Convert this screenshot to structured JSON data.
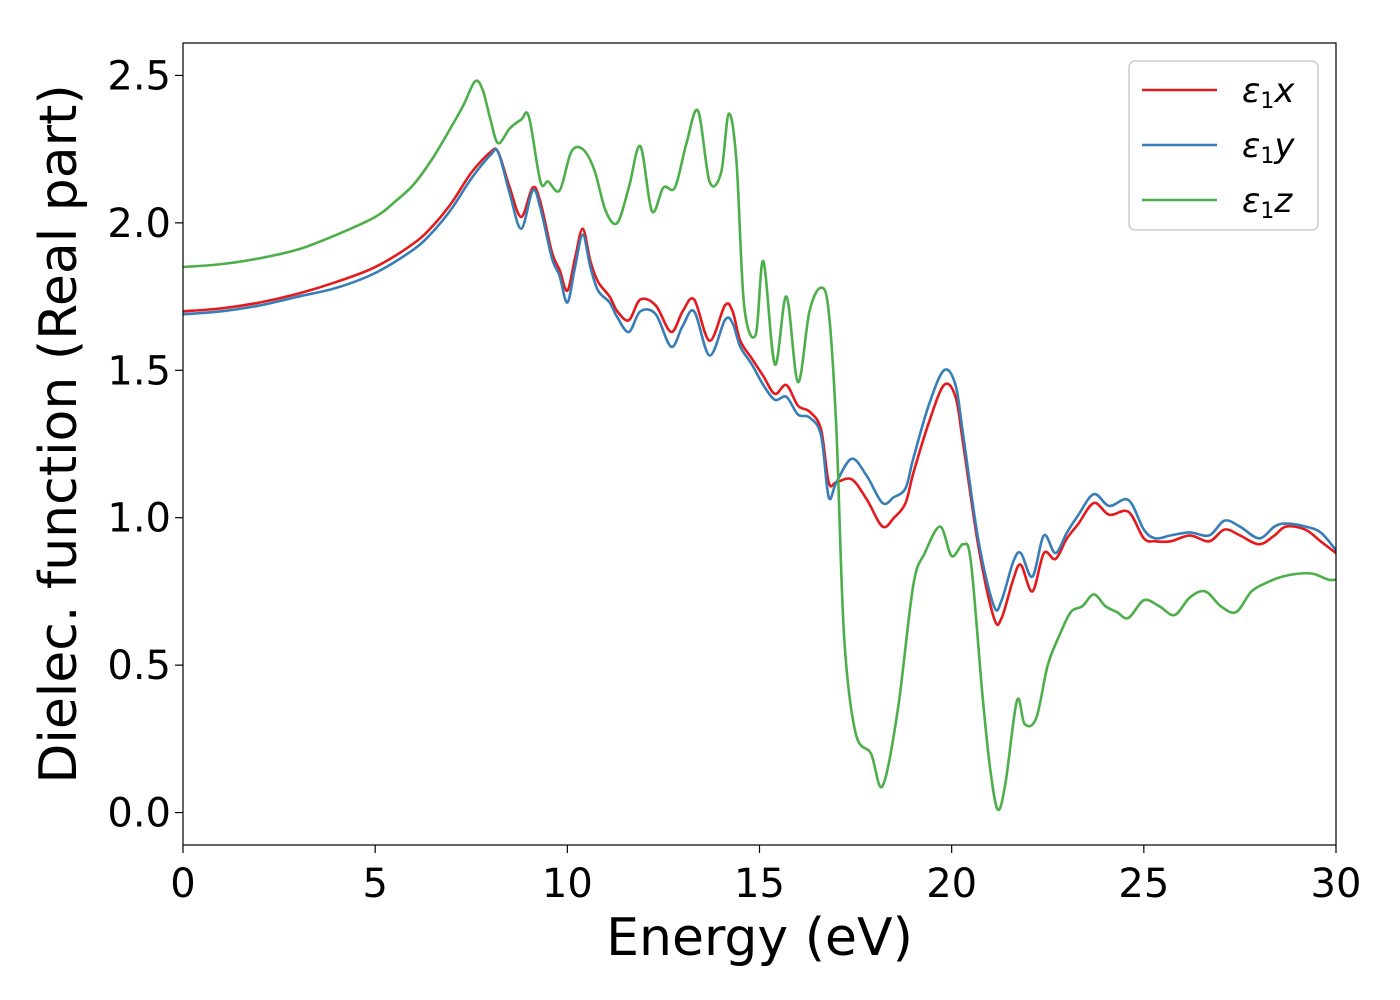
{
  "chart_data": {
    "type": "line",
    "xlabel": "Energy (eV)",
    "ylabel": "Dielec. function (Real part)",
    "xlim": [
      0,
      30
    ],
    "ylim": [
      -0.11,
      2.61
    ],
    "xticks": [
      0,
      5,
      10,
      15,
      20,
      25,
      30
    ],
    "xtick_labels": [
      "0",
      "5",
      "10",
      "15",
      "20",
      "25",
      "30"
    ],
    "yticks": [
      0.0,
      0.5,
      1.0,
      1.5,
      2.0,
      2.5
    ],
    "ytick_labels": [
      "0.0",
      "0.5",
      "1.0",
      "1.5",
      "2.0",
      "2.5"
    ],
    "grid": false,
    "legend_position": "top-right",
    "series": [
      {
        "name": "ε1x",
        "legend_main": "ε",
        "legend_sub": "1",
        "legend_tail": "x",
        "color": "#e41a1c",
        "x": [
          0,
          1,
          2,
          3,
          4,
          5,
          6,
          6.5,
          7,
          7.5,
          8.0,
          8.2,
          8.5,
          8.8,
          9.1,
          9.3,
          9.6,
          9.8,
          10.0,
          10.2,
          10.4,
          10.6,
          10.8,
          11.1,
          11.3,
          11.6,
          11.9,
          12.3,
          12.7,
          13.0,
          13.3,
          13.7,
          14.1,
          14.3,
          14.5,
          14.8,
          15.1,
          15.4,
          15.7,
          16.0,
          16.3,
          16.6,
          16.8,
          17.0,
          17.4,
          17.8,
          18.2,
          18.5,
          18.8,
          19.0,
          19.4,
          19.8,
          20.1,
          20.3,
          20.7,
          21.1,
          21.3,
          21.6,
          21.8,
          22.1,
          22.4,
          22.7,
          23.0,
          23.3,
          23.7,
          24.1,
          24.6,
          25.0,
          25.3,
          25.7,
          26.2,
          26.7,
          27.1,
          27.5,
          28.0,
          28.4,
          28.7,
          29.2,
          29.6,
          30.0
        ],
        "values": [
          1.7,
          1.71,
          1.73,
          1.76,
          1.8,
          1.85,
          1.93,
          1.99,
          2.07,
          2.17,
          2.24,
          2.24,
          2.12,
          2.02,
          2.12,
          2.07,
          1.9,
          1.84,
          1.77,
          1.88,
          1.98,
          1.87,
          1.8,
          1.75,
          1.7,
          1.67,
          1.74,
          1.72,
          1.63,
          1.7,
          1.74,
          1.6,
          1.72,
          1.7,
          1.6,
          1.54,
          1.48,
          1.42,
          1.45,
          1.38,
          1.36,
          1.3,
          1.12,
          1.12,
          1.13,
          1.06,
          0.97,
          1.0,
          1.05,
          1.15,
          1.32,
          1.45,
          1.41,
          1.25,
          0.9,
          0.66,
          0.66,
          0.79,
          0.84,
          0.75,
          0.88,
          0.86,
          0.93,
          0.98,
          1.05,
          1.01,
          1.02,
          0.93,
          0.92,
          0.92,
          0.94,
          0.92,
          0.96,
          0.94,
          0.91,
          0.94,
          0.97,
          0.96,
          0.92,
          0.88
        ]
      },
      {
        "name": "ε1y",
        "legend_main": "ε",
        "legend_sub": "1",
        "legend_tail": "y",
        "color": "#377eb8",
        "x": [
          0,
          1,
          2,
          3,
          4,
          5,
          6,
          6.5,
          7,
          7.5,
          8.0,
          8.2,
          8.5,
          8.8,
          9.1,
          9.3,
          9.6,
          9.8,
          10.0,
          10.2,
          10.4,
          10.6,
          10.8,
          11.1,
          11.3,
          11.6,
          11.9,
          12.3,
          12.7,
          13.0,
          13.3,
          13.7,
          14.1,
          14.3,
          14.5,
          14.8,
          15.1,
          15.4,
          15.7,
          16.0,
          16.3,
          16.6,
          16.8,
          17.0,
          17.4,
          17.8,
          18.2,
          18.5,
          18.8,
          19.0,
          19.4,
          19.8,
          20.1,
          20.3,
          20.7,
          21.1,
          21.3,
          21.6,
          21.8,
          22.1,
          22.4,
          22.7,
          23.0,
          23.3,
          23.7,
          24.1,
          24.6,
          25.0,
          25.3,
          25.7,
          26.2,
          26.7,
          27.1,
          27.5,
          28.0,
          28.4,
          28.7,
          29.2,
          29.6,
          30.0
        ],
        "values": [
          1.69,
          1.7,
          1.72,
          1.75,
          1.78,
          1.83,
          1.91,
          1.97,
          2.05,
          2.15,
          2.23,
          2.24,
          2.1,
          1.98,
          2.11,
          2.05,
          1.88,
          1.82,
          1.73,
          1.85,
          1.96,
          1.85,
          1.77,
          1.73,
          1.68,
          1.63,
          1.7,
          1.69,
          1.58,
          1.65,
          1.7,
          1.55,
          1.67,
          1.66,
          1.58,
          1.52,
          1.45,
          1.4,
          1.41,
          1.35,
          1.34,
          1.28,
          1.07,
          1.12,
          1.2,
          1.14,
          1.05,
          1.07,
          1.1,
          1.2,
          1.38,
          1.5,
          1.45,
          1.28,
          0.92,
          0.7,
          0.72,
          0.85,
          0.88,
          0.8,
          0.94,
          0.88,
          0.95,
          1.01,
          1.08,
          1.04,
          1.06,
          0.96,
          0.93,
          0.94,
          0.95,
          0.94,
          0.99,
          0.97,
          0.93,
          0.97,
          0.98,
          0.97,
          0.95,
          0.89
        ]
      },
      {
        "name": "ε1z",
        "legend_main": "ε",
        "legend_sub": "1",
        "legend_tail": "z",
        "color": "#4daf4a",
        "x": [
          0,
          1,
          2,
          3,
          4,
          5,
          5.5,
          6,
          6.5,
          7.0,
          7.3,
          7.6,
          7.8,
          8.0,
          8.2,
          8.5,
          8.8,
          9.0,
          9.3,
          9.5,
          9.8,
          10.1,
          10.4,
          10.7,
          11.0,
          11.3,
          11.6,
          11.9,
          12.2,
          12.5,
          12.8,
          13.1,
          13.4,
          13.7,
          14.0,
          14.2,
          14.4,
          14.6,
          14.9,
          15.1,
          15.4,
          15.7,
          16.0,
          16.3,
          16.6,
          16.8,
          17.0,
          17.2,
          17.5,
          17.9,
          18.2,
          18.6,
          19.0,
          19.3,
          19.7,
          20.0,
          20.3,
          20.5,
          20.8,
          21.0,
          21.2,
          21.4,
          21.7,
          21.9,
          22.2,
          22.5,
          22.8,
          23.1,
          23.4,
          23.7,
          24.0,
          24.3,
          24.6,
          25.0,
          25.4,
          25.8,
          26.2,
          26.6,
          27.0,
          27.4,
          27.8,
          28.2,
          28.6,
          29.0,
          29.4,
          29.8,
          30.0
        ],
        "values": [
          1.85,
          1.86,
          1.88,
          1.91,
          1.96,
          2.02,
          2.07,
          2.13,
          2.22,
          2.33,
          2.4,
          2.48,
          2.45,
          2.35,
          2.27,
          2.32,
          2.35,
          2.36,
          2.14,
          2.14,
          2.11,
          2.24,
          2.25,
          2.18,
          2.04,
          2.0,
          2.12,
          2.26,
          2.04,
          2.12,
          2.12,
          2.27,
          2.38,
          2.14,
          2.17,
          2.37,
          2.21,
          1.72,
          1.62,
          1.87,
          1.52,
          1.75,
          1.46,
          1.7,
          1.78,
          1.7,
          1.3,
          0.6,
          0.27,
          0.2,
          0.09,
          0.35,
          0.77,
          0.88,
          0.97,
          0.87,
          0.91,
          0.85,
          0.4,
          0.15,
          0.01,
          0.1,
          0.38,
          0.3,
          0.32,
          0.5,
          0.6,
          0.68,
          0.7,
          0.74,
          0.7,
          0.68,
          0.66,
          0.72,
          0.7,
          0.67,
          0.73,
          0.75,
          0.7,
          0.68,
          0.75,
          0.78,
          0.8,
          0.81,
          0.81,
          0.79,
          0.79
        ]
      }
    ]
  }
}
